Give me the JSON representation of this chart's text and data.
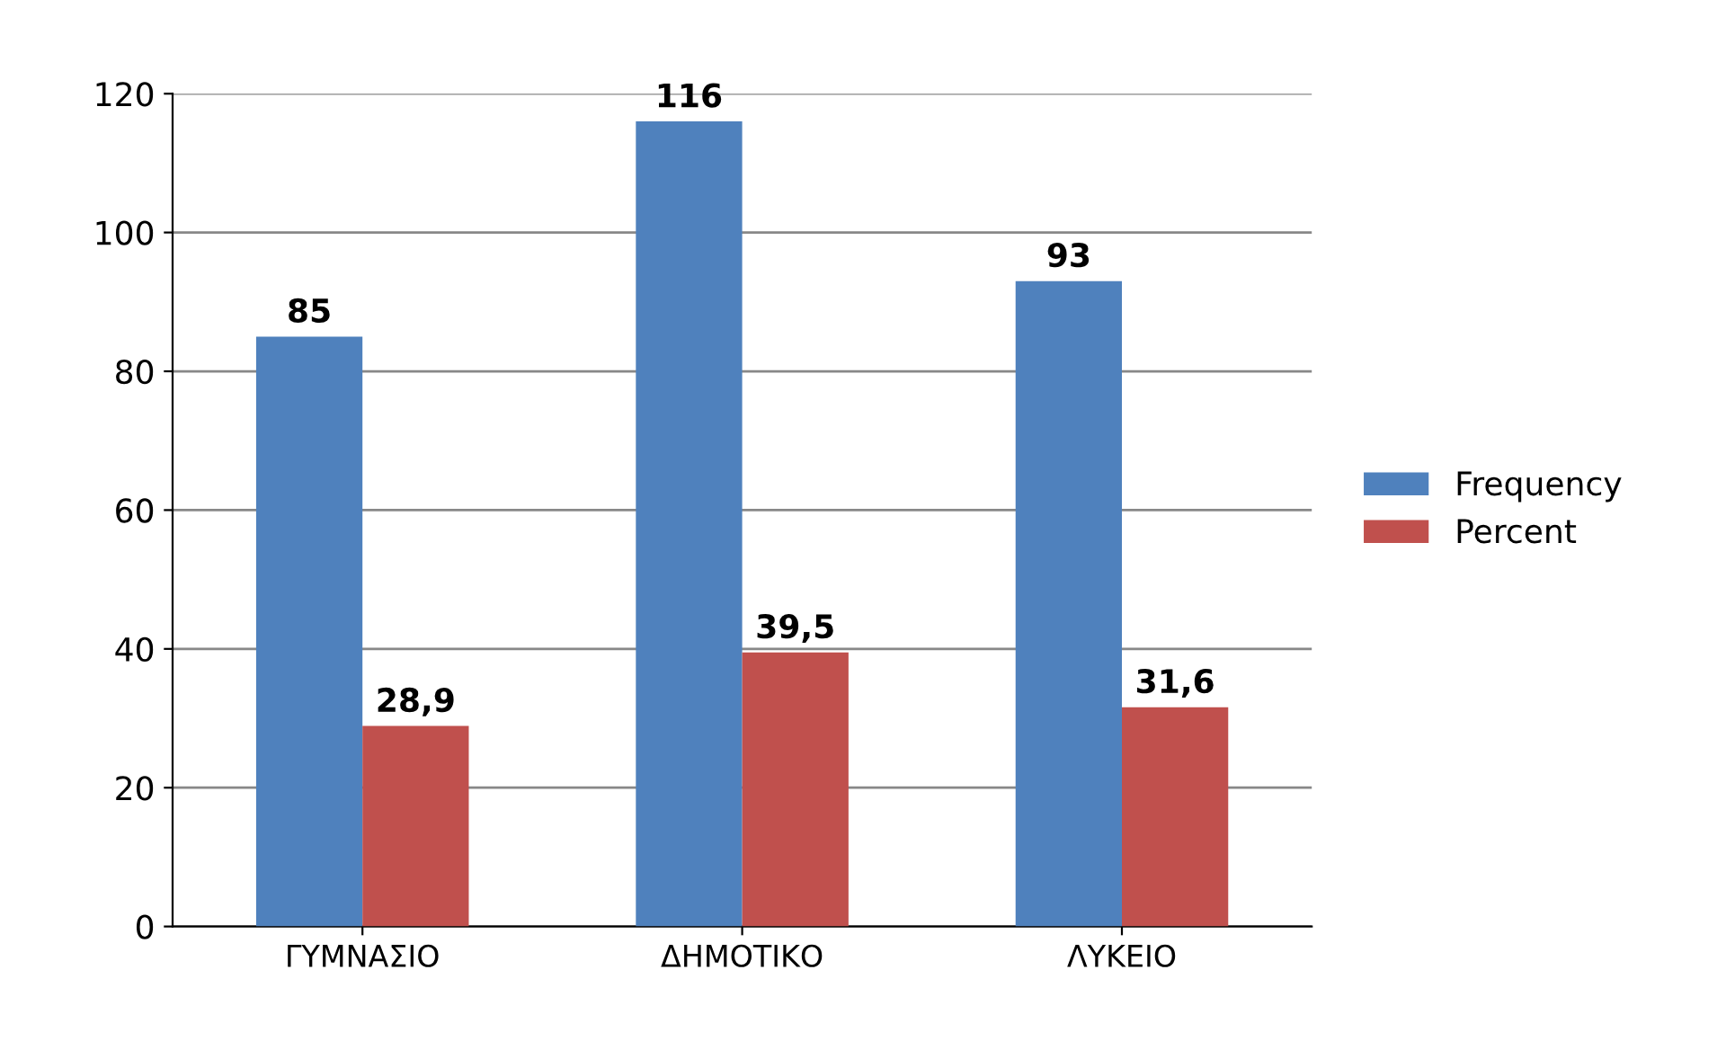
{
  "chart_data": {
    "type": "bar",
    "categories": [
      "ΓΥΜΝΑΣΙΟ",
      "ΔΗΜΟΤΙΚΟ",
      "ΛΥΚΕΙΟ"
    ],
    "series": [
      {
        "name": "Frequency",
        "color": "#4f81bd",
        "values": [
          85,
          116,
          93
        ],
        "value_labels": [
          "85",
          "116",
          "93"
        ]
      },
      {
        "name": "Percent",
        "color": "#c0504d",
        "values": [
          28.9,
          39.5,
          31.6
        ],
        "value_labels": [
          "28,9",
          "39,5",
          "31,6"
        ]
      }
    ],
    "ylim": [
      0,
      120
    ],
    "yticks": [
      0,
      20,
      40,
      60,
      80,
      100,
      120
    ],
    "grid": "y",
    "legend": "right"
  }
}
